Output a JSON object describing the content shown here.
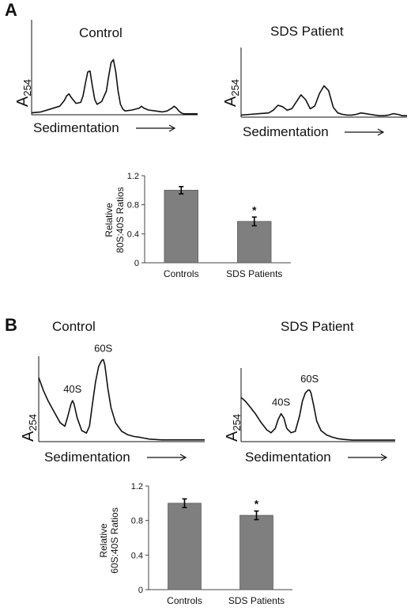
{
  "panels": [
    {
      "letter": "A",
      "profiles": [
        {
          "title": "Control",
          "ylabel_main": "A",
          "ylabel_sub": "254",
          "xlabel": "Sedimentation",
          "peak_labels": [],
          "chart_data": {
            "type": "line",
            "title": "Control",
            "xlabel": "Sedimentation",
            "ylabel": "A254",
            "x": [
              0,
              4,
              8,
              12,
              14,
              15,
              16,
              17,
              19,
              21,
              22,
              23,
              24,
              25,
              26,
              27,
              28,
              30,
              32,
              33,
              34,
              35,
              36,
              37,
              38,
              39,
              40,
              43,
              46,
              47,
              48,
              49,
              50,
              53,
              56,
              58,
              60,
              61,
              62,
              63,
              64,
              65,
              66,
              69,
              70,
              71
            ],
            "values": [
              0.02,
              0.03,
              0.06,
              0.09,
              0.15,
              0.2,
              0.22,
              0.18,
              0.12,
              0.13,
              0.2,
              0.33,
              0.45,
              0.46,
              0.3,
              0.16,
              0.11,
              0.14,
              0.25,
              0.41,
              0.55,
              0.58,
              0.45,
              0.25,
              0.11,
              0.06,
              0.04,
              0.05,
              0.07,
              0.09,
              0.07,
              0.06,
              0.05,
              0.04,
              0.03,
              0.04,
              0.07,
              0.09,
              0.07,
              0.04,
              0.02,
              0.01,
              0.01,
              0.01,
              0.01,
              0.01
            ],
            "ylim": [
              0,
              1.0
            ],
            "xlim": [
              0,
              71
            ]
          }
        },
        {
          "title": "SDS Patient",
          "ylabel_main": "A",
          "ylabel_sub": "254",
          "xlabel": "Sedimentation",
          "peak_labels": [],
          "chart_data": {
            "type": "line",
            "title": "SDS Patient",
            "xlabel": "Sedimentation",
            "ylabel": "A254",
            "x": [
              0,
              4,
              8,
              12,
              14,
              16,
              18,
              20,
              22,
              24,
              26,
              28,
              30,
              32,
              34,
              36,
              38,
              40,
              42,
              44,
              46,
              48,
              50,
              52,
              54,
              56,
              58,
              60,
              62,
              64,
              66,
              68,
              70,
              72
            ],
            "values": [
              0.03,
              0.04,
              0.05,
              0.06,
              0.1,
              0.17,
              0.15,
              0.1,
              0.12,
              0.22,
              0.32,
              0.25,
              0.12,
              0.16,
              0.34,
              0.45,
              0.38,
              0.14,
              0.06,
              0.04,
              0.03,
              0.03,
              0.04,
              0.06,
              0.05,
              0.04,
              0.03,
              0.02,
              0.02,
              0.03,
              0.05,
              0.04,
              0.02,
              0.02
            ],
            "ylim": [
              0,
              1.0
            ],
            "xlim": [
              0,
              72
            ]
          }
        }
      ],
      "bar_chart": {
        "chart_data": {
          "type": "bar",
          "categories": [
            "Controls",
            "SDS Patients"
          ],
          "values": [
            1.0,
            0.57
          ],
          "errors": [
            0.05,
            0.06
          ],
          "significance": [
            "",
            "*"
          ],
          "ylabel": "Relative\n80S:40S Ratios",
          "ylim": [
            0,
            1.2
          ],
          "yticks": [
            "0",
            "0.4",
            "0.8",
            "1.2"
          ],
          "ytick_values": [
            0,
            0.4,
            0.8,
            1.2
          ],
          "bar_color": "#7f7f7f"
        }
      }
    },
    {
      "letter": "B",
      "profiles": [
        {
          "title": "Control",
          "ylabel_main": "A",
          "ylabel_sub": "254",
          "xlabel": "Sedimentation",
          "peak_labels": [
            {
              "text": "40S",
              "x": 22
            },
            {
              "text": "60S",
              "x": 42
            }
          ],
          "chart_data": {
            "type": "line",
            "title": "Control",
            "xlabel": "Sedimentation",
            "ylabel": "A254",
            "x": [
              0,
              3,
              6,
              10,
              14,
              17,
              19,
              21,
              22,
              23,
              25,
              28,
              31,
              33,
              35,
              37,
              39,
              41,
              42,
              43,
              45,
              47,
              50,
              54,
              58,
              62,
              66,
              72,
              80,
              90,
              100,
              108
            ],
            "values": [
              0.75,
              0.6,
              0.48,
              0.35,
              0.22,
              0.18,
              0.3,
              0.44,
              0.48,
              0.44,
              0.28,
              0.13,
              0.1,
              0.18,
              0.45,
              0.7,
              0.88,
              0.95,
              0.96,
              0.9,
              0.62,
              0.4,
              0.22,
              0.12,
              0.08,
              0.06,
              0.05,
              0.03,
              0.02,
              0.02,
              0.02,
              0.02
            ],
            "ylim": [
              0,
              1.0
            ],
            "xlim": [
              0,
              108
            ]
          }
        },
        {
          "title": "SDS Patient",
          "ylabel_main": "A",
          "ylabel_sub": "254",
          "xlabel": "Sedimentation",
          "peak_labels": [
            {
              "text": "40S",
              "x": 28
            },
            {
              "text": "60S",
              "x": 48
            }
          ],
          "chart_data": {
            "type": "line",
            "title": "SDS Patient",
            "xlabel": "Sedimentation",
            "ylabel": "A254",
            "x": [
              0,
              3,
              6,
              10,
              14,
              18,
              21,
              24,
              26,
              28,
              30,
              32,
              35,
              38,
              41,
              43,
              45,
              47,
              48,
              49,
              51,
              53,
              56,
              60,
              64,
              68,
              72,
              78,
              85,
              92,
              100,
              108
            ],
            "values": [
              0.6,
              0.55,
              0.48,
              0.38,
              0.26,
              0.16,
              0.12,
              0.18,
              0.3,
              0.38,
              0.32,
              0.18,
              0.12,
              0.14,
              0.35,
              0.55,
              0.66,
              0.7,
              0.7,
              0.66,
              0.48,
              0.28,
              0.15,
              0.09,
              0.06,
              0.04,
              0.03,
              0.02,
              0.02,
              0.02,
              0.02,
              0.02
            ],
            "ylim": [
              0,
              1.0
            ],
            "xlim": [
              0,
              108
            ]
          }
        }
      ],
      "bar_chart": {
        "chart_data": {
          "type": "bar",
          "categories": [
            "Controls",
            "SDS Patients"
          ],
          "values": [
            1.0,
            0.86
          ],
          "errors": [
            0.05,
            0.05
          ],
          "significance": [
            "",
            "*"
          ],
          "ylabel": "Relative\n60S:40S Ratios",
          "ylim": [
            0,
            1.2
          ],
          "yticks": [
            "0",
            "0.4",
            "0.8",
            "1.2"
          ],
          "ytick_values": [
            0,
            0.4,
            0.8,
            1.2
          ],
          "bar_color": "#7f7f7f"
        }
      }
    }
  ]
}
